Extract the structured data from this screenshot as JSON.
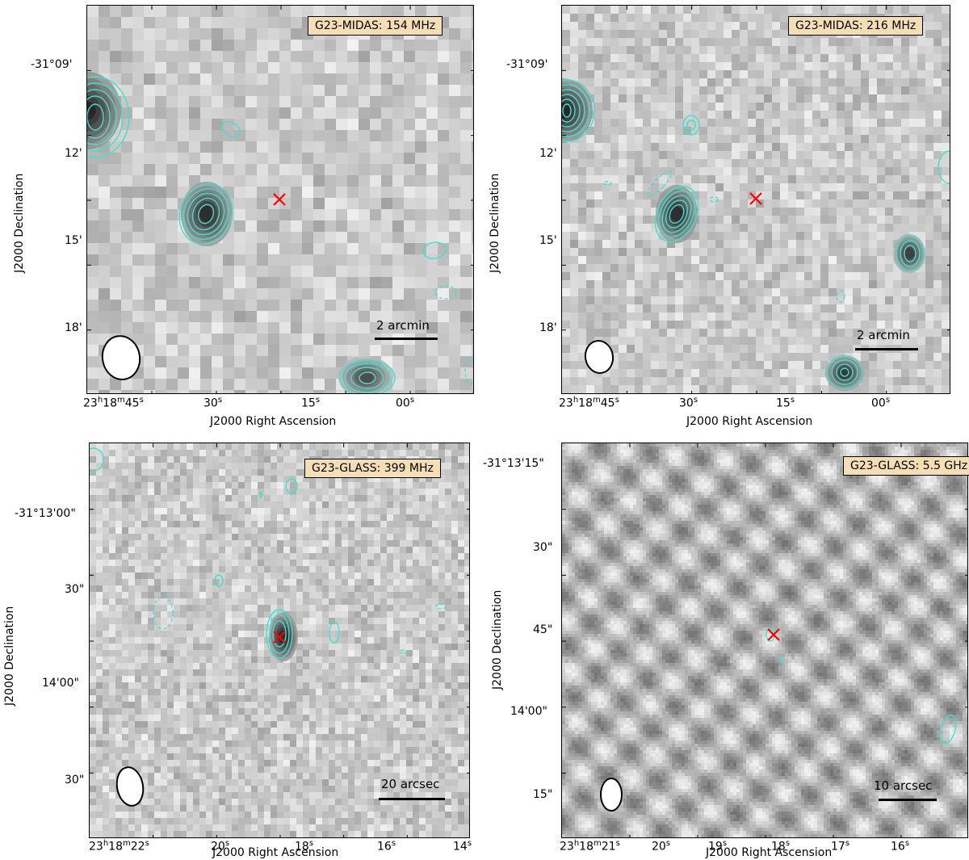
{
  "panels": [
    {
      "id": "p1",
      "freq_label": "G23-MIDAS: 154 MHz",
      "scale_label": "2 arcmin",
      "xlabel": "J2000 Right Ascension",
      "ylabel": "J2000 Declination",
      "xticks": [
        {
          "h": "23",
          "m": "18",
          "s": "45"
        },
        {
          "s": "30"
        },
        {
          "s": "15"
        },
        {
          "s": "00"
        }
      ],
      "yticks": [
        "-31°09'",
        "12'",
        "15'",
        "18'"
      ],
      "noise_seed": 11,
      "pixel": 14
    },
    {
      "id": "p2",
      "freq_label": "G23-MIDAS: 216 MHz",
      "scale_label": "2 arcmin",
      "xlabel": "J2000 Right Ascension",
      "ylabel": "J2000 Declination",
      "xticks": [
        {
          "h": "23",
          "m": "18",
          "s": "45"
        },
        {
          "s": "30"
        },
        {
          "s": "15"
        },
        {
          "s": "00"
        }
      ],
      "yticks": [
        "-31°09'",
        "12'",
        "15'",
        "18'"
      ],
      "noise_seed": 23,
      "pixel": 10
    },
    {
      "id": "p3",
      "freq_label": "G23-GLASS: 399 MHz",
      "scale_label": "20 arcsec",
      "xlabel": "J2000 Right Ascension",
      "ylabel": "J2000 Declination",
      "xticks": [
        {
          "h": "23",
          "m": "18",
          "s": "22"
        },
        {
          "s": "20"
        },
        {
          "s": "18"
        },
        {
          "s": "16"
        },
        {
          "s": "14"
        }
      ],
      "yticks": [
        "-31°13'00\"",
        "30\"",
        "14'00\"",
        "30\""
      ],
      "noise_seed": 37,
      "pixel": 8
    },
    {
      "id": "p4",
      "freq_label": "G23-GLASS: 5.5 GHz",
      "scale_label": "10 arcsec",
      "xlabel": "J2000 Right Ascension",
      "ylabel": "J2000 Declination",
      "xticks": [
        {
          "h": "23",
          "m": "18",
          "s": "21"
        },
        {
          "s": "20"
        },
        {
          "s": "19"
        },
        {
          "s": "18"
        },
        {
          "s": "17"
        },
        {
          "s": "16"
        }
      ],
      "yticks": [
        "-31°13'15\"",
        "30\"",
        "45\"",
        "14'00\"",
        "15\""
      ],
      "noise_seed": 53,
      "pixel": 4
    }
  ],
  "colors": {
    "contour": "#40e0d0",
    "marker": "#ff0000",
    "freqbox_bg": "#f5deb3",
    "beam": "#000000"
  },
  "icons": {
    "marker": "red-cross-marker",
    "beam": "beam-ellipse"
  }
}
